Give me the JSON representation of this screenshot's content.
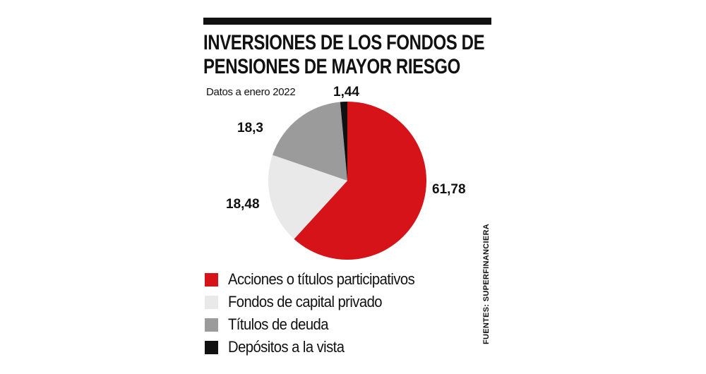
{
  "chart_data": {
    "type": "pie",
    "title_lines": [
      "INVERSIONES DE LOS FONDOS DE",
      "PENSIONES DE MAYOR RIESGO"
    ],
    "subtitle": "Datos a enero 2022",
    "slices": [
      {
        "label": "Acciones o títulos participativos",
        "value": 61.78,
        "display": "61,78",
        "color": "#d7131a"
      },
      {
        "label": "Fondos de capital privado",
        "value": 18.48,
        "display": "18,48",
        "color": "#e9e9e9"
      },
      {
        "label": "Títulos de deuda",
        "value": 18.3,
        "display": "18,3",
        "color": "#9b9b9b"
      },
      {
        "label": "Depósitos a la vista",
        "value": 1.44,
        "display": "1,44",
        "color": "#111111"
      }
    ],
    "source": "FUENTES:  SUPERFINANCIERA"
  }
}
